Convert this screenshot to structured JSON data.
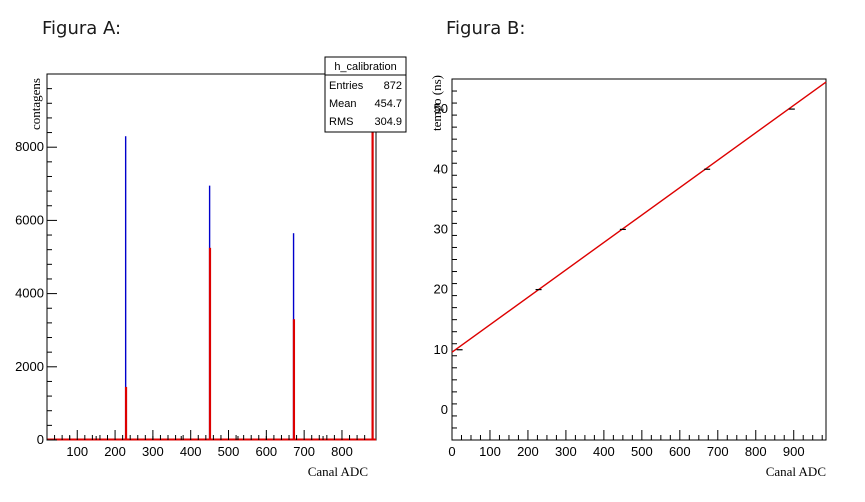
{
  "figure_titles": [
    "Figura A:",
    "Figura B:"
  ],
  "chart_data": [
    {
      "type": "bar",
      "subtype": "histogram",
      "xlabel": "Canal ADC",
      "ylabel": "contagens",
      "xlim": [
        20,
        890
      ],
      "ylim": [
        0,
        10000
      ],
      "x_ticks": [
        100,
        200,
        300,
        400,
        500,
        600,
        700,
        800
      ],
      "y_ticks": [
        0,
        2000,
        4000,
        6000,
        8000
      ],
      "stats_box": {
        "title": "h_calibration",
        "rows": [
          {
            "label": "Entries",
            "value": "872"
          },
          {
            "label": "Mean",
            "value": "454.7"
          },
          {
            "label": "RMS",
            "value": "304.9"
          }
        ]
      },
      "series": [
        {
          "color": "#0000cc",
          "peaks": [
            {
              "x": 228,
              "y": 8300
            },
            {
              "x": 450,
              "y": 6950
            },
            {
              "x": 672,
              "y": 5650
            },
            {
              "x": 880,
              "y": 10000
            }
          ]
        },
        {
          "color": "#dd0000",
          "peaks": [
            {
              "x": 229,
              "y": 1450
            },
            {
              "x": 451,
              "y": 5250
            },
            {
              "x": 673,
              "y": 3300
            },
            {
              "x": 881,
              "y": 10000
            }
          ]
        }
      ],
      "baseline_points": [
        80,
        150,
        300,
        375,
        525,
        600,
        750,
        820
      ]
    },
    {
      "type": "line",
      "xlabel": "Canal ADC",
      "ylabel": "tempo (ns)",
      "xlim": [
        0,
        985
      ],
      "ylim": [
        -5,
        55
      ],
      "x_ticks": [
        0,
        100,
        200,
        300,
        400,
        500,
        600,
        700,
        800,
        900
      ],
      "y_ticks": [
        0,
        10,
        20,
        30,
        40,
        50
      ],
      "points": [
        {
          "x": 20,
          "y": 10
        },
        {
          "x": 228,
          "y": 20
        },
        {
          "x": 450,
          "y": 30
        },
        {
          "x": 672,
          "y": 40
        },
        {
          "x": 895,
          "y": 50
        }
      ],
      "fit": {
        "color": "#dd0000",
        "x": [
          0,
          985
        ],
        "y": [
          9.6,
          54.5
        ]
      }
    }
  ]
}
